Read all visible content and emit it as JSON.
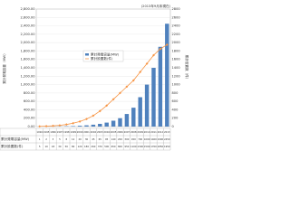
{
  "chart_data": {
    "type": "bar-line",
    "note": "(2013年9月末現在)",
    "ylabel": "累計発電容量（MW）",
    "y2label": "累計設置数（件）",
    "categories": [
      "1994",
      "1995",
      "1996",
      "1997",
      "1998",
      "1999",
      "2000",
      "2001",
      "2002",
      "2003",
      "2004",
      "2005",
      "2006",
      "2007",
      "2008",
      "2009",
      "2010",
      "2011",
      "2012",
      "2013"
    ],
    "series": [
      {
        "name": "累計発電容量(MW)",
        "color": "#4f81bd",
        "values": [
          1,
          2,
          3,
          5,
          8,
          12,
          20,
          30,
          45,
          65,
          95,
          140,
          200,
          300,
          450,
          700,
          1000,
          1400,
          1900,
          2450
        ]
      },
      {
        "name": "累計設置数(件)",
        "color": "#f79646",
        "axis": "y2",
        "values": [
          5,
          10,
          18,
          30,
          50,
          80,
          120,
          180,
          260,
          370,
          500,
          650,
          800,
          950,
          1100,
          1300,
          1500,
          1700,
          1850,
          1950
        ]
      }
    ],
    "ylim": [
      0,
      2800
    ],
    "yticks": [
      {
        "value": 0,
        "label": "0.00"
      },
      {
        "value": 200,
        "label": "200.00"
      },
      {
        "value": 400,
        "label": "400.00"
      },
      {
        "value": 600,
        "label": "600.00"
      },
      {
        "value": 800,
        "label": "800.00"
      },
      {
        "value": 1000,
        "label": "1,000.00"
      },
      {
        "value": 1200,
        "label": "1,200.00"
      },
      {
        "value": 1400,
        "label": "1,400.00"
      },
      {
        "value": 1600,
        "label": "1,600.00"
      },
      {
        "value": 1800,
        "label": "1,800.00"
      },
      {
        "value": 2000,
        "label": "2,000.00"
      },
      {
        "value": 2200,
        "label": "2,200.00"
      },
      {
        "value": 2400,
        "label": "2,400.00"
      },
      {
        "value": 2600,
        "label": "2,600.00"
      },
      {
        "value": 2800,
        "label": "2,800.00"
      }
    ],
    "y2lim": [
      0,
      2800
    ],
    "y2ticks": [
      0,
      200,
      400,
      600,
      800,
      1000,
      1200,
      1400,
      1600,
      1800,
      2000,
      2200,
      2400,
      2600,
      2800
    ],
    "grid": true
  }
}
